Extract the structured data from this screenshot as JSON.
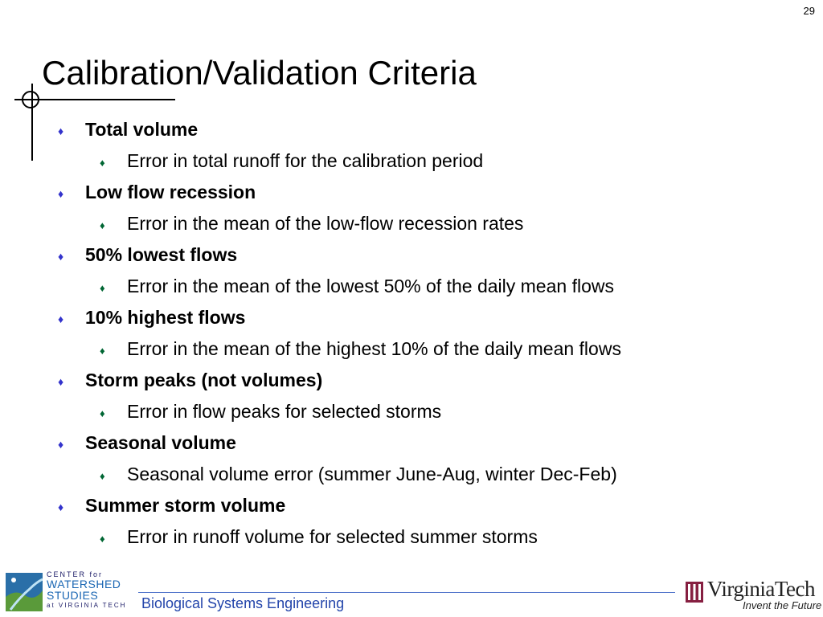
{
  "slide": {
    "number": "29",
    "title": "Calibration/Validation Criteria"
  },
  "bullets": [
    {
      "heading": "Total volume",
      "detail": "Error in total runoff for the calibration period"
    },
    {
      "heading": "Low flow recession",
      "detail": "Error in the mean of the low-flow recession rates"
    },
    {
      "heading": "50% lowest flows",
      "detail": "Error in the mean of the lowest 50% of the daily mean flows"
    },
    {
      "heading": "10% highest flows",
      "detail": "Error in the mean of the highest 10% of the daily mean flows"
    },
    {
      "heading": "Storm peaks (not volumes)",
      "detail": "Error in flow peaks for selected storms"
    },
    {
      "heading": "Seasonal volume",
      "detail": "Seasonal volume error (summer June-Aug, winter Dec-Feb)"
    },
    {
      "heading": "Summer storm volume",
      "detail": "Error in runoff volume for selected summer storms"
    }
  ],
  "bullet_glyph": "♦",
  "footer": {
    "department": "Biological Systems Engineering",
    "cws_line1": "CENTER for",
    "cws_line2": "WATERSHED",
    "cws_line3": "STUDIES",
    "cws_line4": "at VIRGINIA TECH",
    "vt_name": "VirginiaTech",
    "vt_tagline": "Invent the Future"
  },
  "colors": {
    "bullet_l1": "#3333cc",
    "bullet_l2": "#006633",
    "footer_text": "#2244aa",
    "vt_maroon": "#861f41"
  }
}
